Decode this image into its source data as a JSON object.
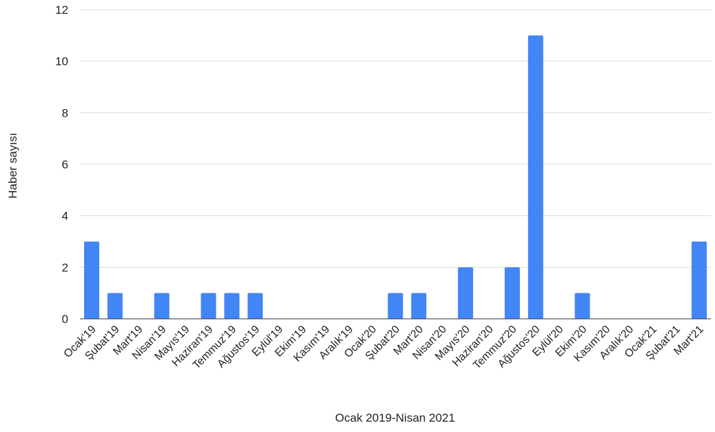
{
  "chart_data": {
    "type": "bar",
    "title": "",
    "xlabel": "Ocak 2019-Nisan 2021",
    "ylabel": "Haber sayısı",
    "ylim": [
      0,
      12
    ],
    "yticks": [
      0,
      2,
      4,
      6,
      8,
      10,
      12
    ],
    "grid": true,
    "legend": "none",
    "bar_color": "#4285f4",
    "categories": [
      "Ocak'19",
      "Şubat'19",
      "Mart'19",
      "Nisan'19",
      "Mayıs'19",
      "Haziran'19",
      "Temmuz'19",
      "Ağustos'19",
      "Eylül'19",
      "Ekim'19",
      "Kasım'19",
      "Aralık'19",
      "Ocak'20",
      "Şubat'20",
      "Mart'20",
      "Nisan'20",
      "Mayıs'20",
      "Haziran'20",
      "Temmuz'20",
      "Ağustos'20",
      "Eylül'20",
      "Ekim'20",
      "Kasım'20",
      "Aralık'20",
      "Ocak'21",
      "Şubat'21",
      "Mart'21"
    ],
    "values": [
      3,
      1,
      0,
      1,
      0,
      1,
      1,
      1,
      0,
      0,
      0,
      0,
      0,
      1,
      1,
      0,
      2,
      0,
      2,
      11,
      0,
      1,
      0,
      0,
      0,
      0,
      3
    ]
  }
}
